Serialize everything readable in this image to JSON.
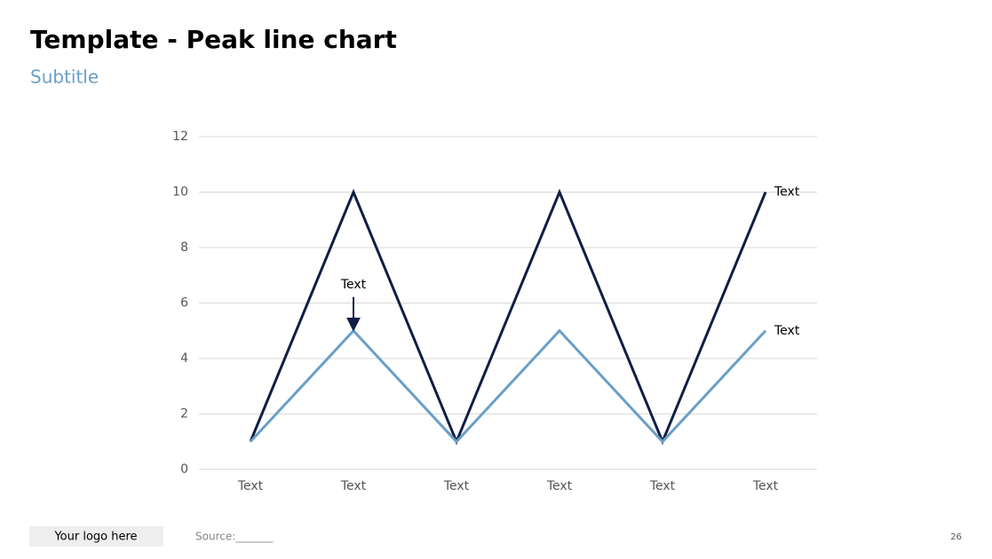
{
  "chart_data": {
    "type": "line",
    "title": "Template - Peak line chart",
    "subtitle": "Subtitle",
    "categories": [
      "Text",
      "Text",
      "Text",
      "Text",
      "Text",
      "Text"
    ],
    "series": [
      {
        "name": "Text",
        "color": "#0f1f45",
        "values": [
          1,
          10,
          1,
          10,
          1,
          10
        ]
      },
      {
        "name": "Text",
        "color": "#6a9fc8",
        "values": [
          1,
          5,
          1,
          5,
          1,
          5
        ]
      }
    ],
    "annotation": "Text",
    "ylim": [
      0,
      12
    ],
    "yticks": [
      0,
      2,
      4,
      6,
      8,
      10,
      12
    ],
    "grid": true
  },
  "footer": {
    "logo": "Your logo here",
    "source": "Source:_______",
    "page_number": "26"
  }
}
